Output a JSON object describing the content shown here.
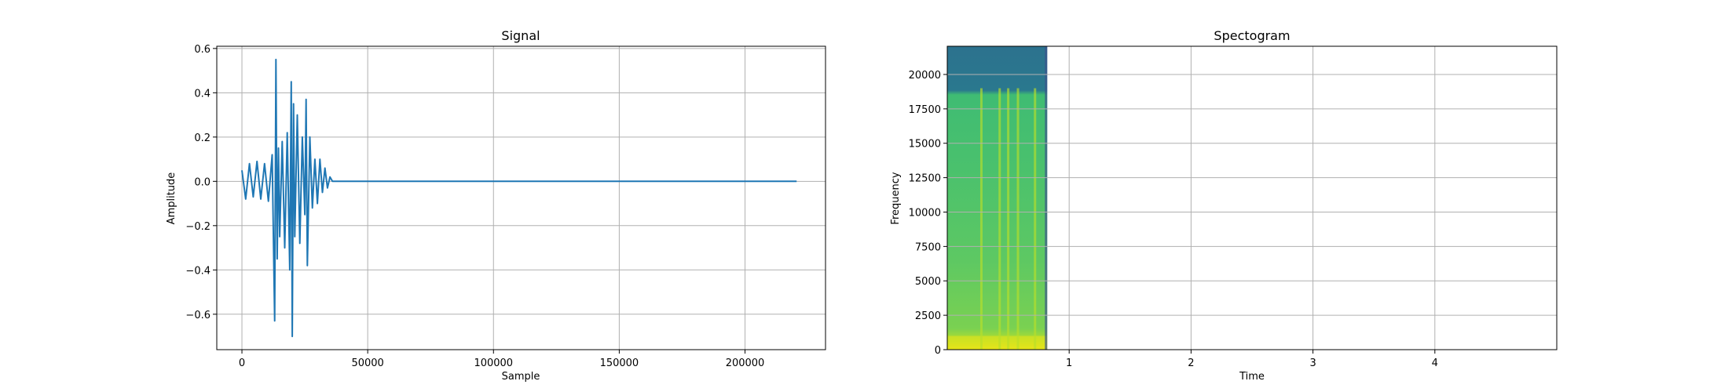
{
  "colors": {
    "signal_line": "#1f77b4",
    "grid": "#b0b0b0",
    "frame": "#000000",
    "spectrogram_colormap": [
      "#440154",
      "#3b528b",
      "#21908d",
      "#5dc963",
      "#fde725"
    ]
  },
  "chart_data": [
    {
      "type": "line",
      "title": "Signal",
      "xlabel": "Sample",
      "ylabel": "Amplitude",
      "xlim": [
        -10000,
        232000
      ],
      "ylim": [
        -0.76,
        0.61
      ],
      "xticks": [
        0,
        50000,
        100000,
        150000,
        200000
      ],
      "xtick_labels": [
        "0",
        "50000",
        "100000",
        "150000",
        "200000"
      ],
      "yticks": [
        -0.6,
        -0.4,
        -0.2,
        0.0,
        0.2,
        0.4,
        0.6
      ],
      "ytick_labels": [
        "−0.6",
        "−0.4",
        "−0.2",
        "0.0",
        "0.2",
        "0.4",
        "0.6"
      ],
      "grid": true,
      "series": [
        {
          "x": [
            0,
            1500,
            3000,
            4500,
            6000,
            7500,
            9000,
            10500,
            12000,
            13000,
            13500,
            14000,
            14500,
            15000,
            16000,
            17000,
            18000,
            19000,
            19600,
            20000,
            20500,
            21000,
            22000,
            23000,
            24000,
            25000,
            25500,
            26000,
            27000,
            28000,
            29000,
            30000,
            31000,
            32000,
            33000,
            34000,
            35000,
            36000,
            60000,
            100000,
            150000,
            200000,
            220500
          ],
          "y": [
            0.05,
            -0.08,
            0.08,
            -0.07,
            0.09,
            -0.08,
            0.08,
            -0.09,
            0.12,
            -0.63,
            0.55,
            -0.35,
            0.15,
            -0.25,
            0.18,
            -0.3,
            0.22,
            -0.4,
            0.45,
            -0.7,
            0.35,
            -0.25,
            0.3,
            -0.28,
            0.2,
            -0.15,
            0.37,
            -0.38,
            0.2,
            -0.12,
            0.1,
            -0.1,
            0.1,
            -0.05,
            0.06,
            -0.03,
            0.02,
            0.0,
            0.0,
            0.0,
            0.0,
            0.0,
            0.0
          ]
        }
      ]
    },
    {
      "type": "heatmap",
      "title": "Spectogram",
      "xlabel": "Time",
      "ylabel": "Frequency",
      "xlim": [
        0,
        5.0
      ],
      "ylim": [
        0,
        22050
      ],
      "xticks": [
        1,
        2,
        3,
        4
      ],
      "xtick_labels": [
        "1",
        "2",
        "3",
        "4"
      ],
      "yticks": [
        0,
        2500,
        5000,
        7500,
        10000,
        12500,
        15000,
        17500,
        20000
      ],
      "ytick_labels": [
        "0",
        "2500",
        "5000",
        "7500",
        "10000",
        "12500",
        "15000",
        "17500",
        "20000"
      ],
      "grid": true,
      "colormap": "viridis",
      "time_extent": [
        0,
        0.82
      ],
      "freq_extent": [
        0,
        22050
      ],
      "notes_bright_frequency_bands": [
        0,
        1000
      ],
      "bright_time_streaks": [
        0.28,
        0.43,
        0.5,
        0.58,
        0.72
      ]
    }
  ]
}
